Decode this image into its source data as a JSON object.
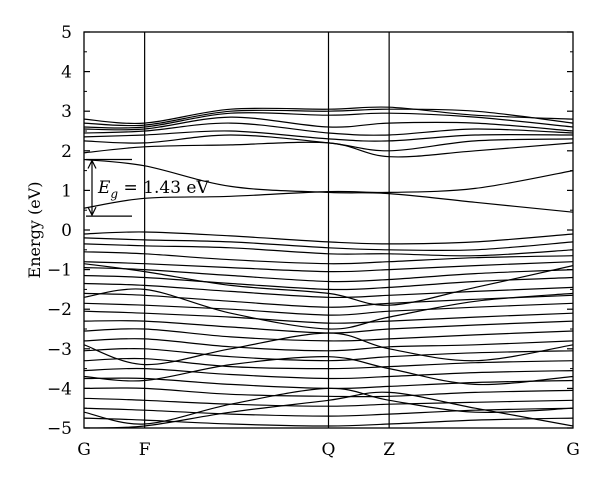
{
  "chart_data": {
    "type": "line",
    "title": "",
    "xlabel": "",
    "ylabel": "Energy (eV)",
    "ylim": [
      -5,
      5
    ],
    "yticks": [
      "5",
      "4",
      "3",
      "2",
      "1",
      "0",
      "−1",
      "−2",
      "−3",
      "−4",
      "−5"
    ],
    "k_points": [
      {
        "label": "G",
        "x": 0
      },
      {
        "label": "F",
        "x": 0.124
      },
      {
        "label": "Q",
        "x": 0.5
      },
      {
        "label": "Z",
        "x": 0.624
      },
      {
        "label": "G",
        "x": 1
      }
    ],
    "grid": false,
    "annotation": {
      "symbol": "E",
      "subscript": "g",
      "text": " = 1.43 eV",
      "from": 0.35,
      "to": 1.78
    },
    "conduction_bands": [
      {
        "x": [
          0,
          0.124,
          0.3,
          0.5,
          0.624,
          0.8,
          1
        ],
        "values": [
          1.78,
          1.62,
          1.1,
          0.95,
          0.92,
          0.7,
          0.45
        ]
      },
      {
        "x": [
          0,
          0.124,
          0.3,
          0.5,
          0.624,
          0.8,
          1
        ],
        "values": [
          0.55,
          0.8,
          0.85,
          0.97,
          0.95,
          1.05,
          1.5
        ]
      },
      {
        "x": [
          0,
          0.124,
          0.3,
          0.5,
          0.624,
          0.8,
          1
        ],
        "values": [
          1.95,
          2.1,
          2.15,
          2.2,
          1.85,
          2.0,
          2.2
        ]
      },
      {
        "x": [
          0,
          0.124,
          0.3,
          0.5,
          0.624,
          0.8,
          1
        ],
        "values": [
          2.25,
          2.2,
          2.4,
          2.2,
          2.0,
          2.25,
          2.3
        ]
      },
      {
        "x": [
          0,
          0.124,
          0.3,
          0.5,
          0.624,
          0.8,
          1
        ],
        "values": [
          2.35,
          2.4,
          2.5,
          2.3,
          2.25,
          2.4,
          2.4
        ]
      },
      {
        "x": [
          0,
          0.124,
          0.3,
          0.5,
          0.624,
          0.8,
          1
        ],
        "values": [
          2.45,
          2.5,
          2.7,
          2.45,
          2.4,
          2.55,
          2.45
        ]
      },
      {
        "x": [
          0,
          0.124,
          0.3,
          0.5,
          0.624,
          0.8,
          1
        ],
        "values": [
          2.55,
          2.55,
          2.85,
          2.6,
          2.7,
          2.7,
          2.5
        ]
      },
      {
        "x": [
          0,
          0.124,
          0.3,
          0.5,
          0.624,
          0.8,
          1
        ],
        "values": [
          2.6,
          2.6,
          2.95,
          2.9,
          2.95,
          2.85,
          2.6
        ]
      },
      {
        "x": [
          0,
          0.124,
          0.3,
          0.5,
          0.624,
          0.8,
          1
        ],
        "values": [
          2.7,
          2.65,
          3.0,
          3.0,
          3.05,
          3.0,
          2.7
        ]
      },
      {
        "x": [
          0,
          0.124,
          0.3,
          0.5,
          0.624,
          0.8,
          1
        ],
        "values": [
          2.8,
          2.7,
          3.05,
          3.05,
          3.1,
          2.9,
          2.8
        ]
      }
    ],
    "valence_bands": [
      {
        "x": [
          0,
          0.124,
          0.3,
          0.5,
          0.624,
          0.8,
          1
        ],
        "values": [
          -0.1,
          -0.05,
          -0.15,
          -0.3,
          -0.35,
          -0.3,
          -0.1
        ]
      },
      {
        "x": [
          0,
          0.124,
          0.3,
          0.5,
          0.624,
          0.8,
          1
        ],
        "values": [
          -0.2,
          -0.25,
          -0.3,
          -0.45,
          -0.5,
          -0.5,
          -0.3
        ]
      },
      {
        "x": [
          0,
          0.124,
          0.3,
          0.5,
          0.624,
          0.8,
          1
        ],
        "values": [
          -0.35,
          -0.4,
          -0.45,
          -0.6,
          -0.6,
          -0.65,
          -0.5
        ]
      },
      {
        "x": [
          0,
          0.124,
          0.3,
          0.5,
          0.624,
          0.8,
          1
        ],
        "values": [
          -0.55,
          -0.6,
          -0.75,
          -0.85,
          -0.8,
          -0.7,
          -0.65
        ]
      },
      {
        "x": [
          0,
          0.124,
          0.3,
          0.5,
          0.624,
          0.8,
          1
        ],
        "values": [
          -0.8,
          -0.85,
          -0.95,
          -1.05,
          -1.0,
          -0.9,
          -0.8
        ]
      },
      {
        "x": [
          0,
          0.124,
          0.3,
          0.5,
          0.624,
          0.8,
          1
        ],
        "values": [
          -0.95,
          -1.0,
          -1.15,
          -1.3,
          -1.25,
          -1.1,
          -1.0
        ]
      },
      {
        "x": [
          0,
          0.124,
          0.3,
          0.5,
          0.624,
          0.8,
          1
        ],
        "values": [
          -1.15,
          -1.2,
          -1.35,
          -1.5,
          -1.45,
          -1.3,
          -1.2
        ]
      },
      {
        "x": [
          0,
          0.124,
          0.3,
          0.5,
          0.624,
          0.8,
          1
        ],
        "values": [
          -1.35,
          -1.4,
          -1.55,
          -1.7,
          -1.65,
          -1.55,
          -1.45
        ]
      },
      {
        "x": [
          0,
          0.124,
          0.3,
          0.5,
          0.624,
          0.8,
          1
        ],
        "values": [
          -1.6,
          -1.65,
          -1.8,
          -1.95,
          -1.85,
          -1.75,
          -1.65
        ]
      },
      {
        "x": [
          0,
          0.124,
          0.3,
          0.5,
          0.624,
          0.8,
          1
        ],
        "values": [
          -1.85,
          -1.9,
          -2.0,
          -2.15,
          -2.05,
          -1.95,
          -1.85
        ]
      },
      {
        "x": [
          0,
          0.124,
          0.3,
          0.5,
          0.624,
          0.8,
          1
        ],
        "values": [
          -2.05,
          -2.1,
          -2.2,
          -2.35,
          -2.3,
          -2.2,
          -2.1
        ]
      },
      {
        "x": [
          0,
          0.124,
          0.3,
          0.5,
          0.624,
          0.8,
          1
        ],
        "values": [
          -2.3,
          -2.3,
          -2.45,
          -2.6,
          -2.5,
          -2.4,
          -2.3
        ]
      },
      {
        "x": [
          0,
          0.124,
          0.3,
          0.5,
          0.624,
          0.8,
          1
        ],
        "values": [
          -2.55,
          -2.5,
          -2.7,
          -2.8,
          -2.75,
          -2.65,
          -2.55
        ]
      },
      {
        "x": [
          0,
          0.124,
          0.3,
          0.5,
          0.624,
          0.8,
          1
        ],
        "values": [
          -2.8,
          -2.75,
          -2.95,
          -3.05,
          -2.95,
          -2.9,
          -2.8
        ]
      },
      {
        "x": [
          0,
          0.124,
          0.3,
          0.5,
          0.624,
          0.8,
          1
        ],
        "values": [
          -3.05,
          -3.0,
          -3.2,
          -3.3,
          -3.2,
          -3.1,
          -3.05
        ]
      },
      {
        "x": [
          0,
          0.124,
          0.3,
          0.5,
          0.624,
          0.8,
          1
        ],
        "values": [
          -3.3,
          -3.25,
          -3.45,
          -3.5,
          -3.45,
          -3.35,
          -3.3
        ]
      },
      {
        "x": [
          0,
          0.124,
          0.3,
          0.5,
          0.624,
          0.8,
          1
        ],
        "values": [
          -3.55,
          -3.5,
          -3.65,
          -3.75,
          -3.7,
          -3.6,
          -3.55
        ]
      },
      {
        "x": [
          0,
          0.124,
          0.3,
          0.5,
          0.624,
          0.8,
          1
        ],
        "values": [
          -3.75,
          -3.75,
          -3.9,
          -4.0,
          -3.95,
          -3.85,
          -3.8
        ]
      },
      {
        "x": [
          0,
          0.124,
          0.3,
          0.5,
          0.624,
          0.8,
          1
        ],
        "values": [
          -4.0,
          -4.0,
          -4.15,
          -4.2,
          -4.2,
          -4.1,
          -4.05
        ]
      },
      {
        "x": [
          0,
          0.124,
          0.3,
          0.5,
          0.624,
          0.8,
          1
        ],
        "values": [
          -4.25,
          -4.3,
          -4.4,
          -4.45,
          -4.4,
          -4.35,
          -4.3
        ]
      },
      {
        "x": [
          0,
          0.124,
          0.3,
          0.5,
          0.624,
          0.8,
          1
        ],
        "values": [
          -4.5,
          -4.55,
          -4.65,
          -4.7,
          -4.65,
          -4.55,
          -4.5
        ]
      },
      {
        "x": [
          0,
          0.124,
          0.3,
          0.5,
          0.624,
          0.8,
          1
        ],
        "values": [
          -4.75,
          -4.8,
          -4.9,
          -4.95,
          -4.9,
          -4.8,
          -4.75
        ]
      },
      {
        "x": [
          0,
          0.124,
          0.3,
          0.5,
          0.624,
          0.8,
          1
        ],
        "values": [
          -0.85,
          -1.05,
          -1.4,
          -1.6,
          -1.9,
          -1.45,
          -0.9
        ]
      },
      {
        "x": [
          0,
          0.124,
          0.3,
          0.5,
          0.624,
          0.8,
          1
        ],
        "values": [
          -1.7,
          -1.5,
          -2.1,
          -2.5,
          -2.2,
          -1.8,
          -1.6
        ]
      },
      {
        "x": [
          0,
          0.124,
          0.3,
          0.5,
          0.624,
          0.8,
          1
        ],
        "values": [
          -2.9,
          -3.4,
          -3.0,
          -2.6,
          -3.0,
          -3.3,
          -2.9
        ]
      },
      {
        "x": [
          0,
          0.124,
          0.3,
          0.5,
          0.624,
          0.8,
          1
        ],
        "values": [
          -3.7,
          -3.8,
          -3.4,
          -3.2,
          -3.5,
          -3.9,
          -3.7
        ]
      },
      {
        "x": [
          0,
          0.124,
          0.3,
          0.5,
          0.624,
          0.8,
          1
        ],
        "values": [
          -4.6,
          -4.9,
          -4.4,
          -4.0,
          -4.3,
          -4.6,
          -4.5
        ]
      },
      {
        "x": [
          0,
          0.124,
          0.3,
          0.5,
          0.624,
          0.8,
          1
        ],
        "values": [
          -5.0,
          -4.95,
          -4.6,
          -4.3,
          -4.1,
          -4.5,
          -4.95
        ]
      }
    ]
  }
}
